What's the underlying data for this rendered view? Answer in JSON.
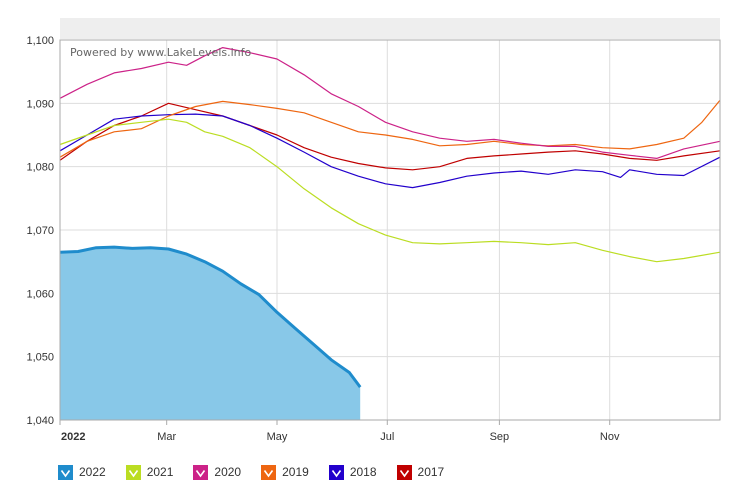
{
  "watermark": "Powered by www.LakeLevels.info",
  "chart_data": {
    "type": "line",
    "title": "",
    "xlabel": "",
    "ylabel": "",
    "ylim": [
      1040,
      1100
    ],
    "xlim": [
      0,
      365
    ],
    "grid": true,
    "legend_placement": "bottom",
    "y_ticks": [
      {
        "value": 1040,
        "label": "1,040"
      },
      {
        "value": 1050,
        "label": "1,050"
      },
      {
        "value": 1060,
        "label": "1,060"
      },
      {
        "value": 1070,
        "label": "1,070"
      },
      {
        "value": 1080,
        "label": "1,080"
      },
      {
        "value": 1090,
        "label": "1,090"
      },
      {
        "value": 1100,
        "label": "1,100"
      }
    ],
    "x_ticks": [
      {
        "day": 0,
        "label": "2022",
        "bold": true
      },
      {
        "day": 59,
        "label": "Mar",
        "bold": false
      },
      {
        "day": 120,
        "label": "May",
        "bold": false
      },
      {
        "day": 181,
        "label": "Jul",
        "bold": false
      },
      {
        "day": 243,
        "label": "Sep",
        "bold": false
      },
      {
        "day": 304,
        "label": "Nov",
        "bold": false
      }
    ],
    "series": [
      {
        "name": "2017",
        "color": "#c00000",
        "style": "line",
        "points": [
          [
            0,
            1081
          ],
          [
            15,
            1084
          ],
          [
            30,
            1086.5
          ],
          [
            45,
            1088
          ],
          [
            60,
            1090
          ],
          [
            75,
            1089
          ],
          [
            90,
            1088
          ],
          [
            105,
            1086.5
          ],
          [
            120,
            1085
          ],
          [
            135,
            1083
          ],
          [
            150,
            1081.5
          ],
          [
            165,
            1080.5
          ],
          [
            180,
            1079.8
          ],
          [
            195,
            1079.5
          ],
          [
            210,
            1080
          ],
          [
            225,
            1081.3
          ],
          [
            240,
            1081.7
          ],
          [
            255,
            1082
          ],
          [
            270,
            1082.3
          ],
          [
            285,
            1082.5
          ],
          [
            300,
            1082
          ],
          [
            315,
            1081.3
          ],
          [
            330,
            1081
          ],
          [
            345,
            1081.7
          ],
          [
            365,
            1082.5
          ]
        ]
      },
      {
        "name": "2018",
        "color": "#2200cc",
        "style": "line",
        "points": [
          [
            0,
            1082.5
          ],
          [
            15,
            1085
          ],
          [
            30,
            1087.5
          ],
          [
            45,
            1088
          ],
          [
            60,
            1088.2
          ],
          [
            75,
            1088.3
          ],
          [
            90,
            1088
          ],
          [
            105,
            1086.5
          ],
          [
            120,
            1084.5
          ],
          [
            135,
            1082.3
          ],
          [
            150,
            1080
          ],
          [
            165,
            1078.5
          ],
          [
            180,
            1077.3
          ],
          [
            195,
            1076.7
          ],
          [
            210,
            1077.5
          ],
          [
            225,
            1078.5
          ],
          [
            240,
            1079
          ],
          [
            255,
            1079.3
          ],
          [
            270,
            1078.8
          ],
          [
            285,
            1079.5
          ],
          [
            300,
            1079.2
          ],
          [
            310,
            1078.3
          ],
          [
            315,
            1079.5
          ],
          [
            330,
            1078.8
          ],
          [
            345,
            1078.6
          ],
          [
            365,
            1081.5
          ]
        ]
      },
      {
        "name": "2019",
        "color": "#ee6611",
        "style": "line",
        "points": [
          [
            0,
            1081.5
          ],
          [
            15,
            1084
          ],
          [
            30,
            1085.5
          ],
          [
            45,
            1086
          ],
          [
            60,
            1088
          ],
          [
            75,
            1089.5
          ],
          [
            90,
            1090.3
          ],
          [
            105,
            1089.8
          ],
          [
            120,
            1089.2
          ],
          [
            135,
            1088.5
          ],
          [
            150,
            1087
          ],
          [
            165,
            1085.5
          ],
          [
            180,
            1085
          ],
          [
            195,
            1084.3
          ],
          [
            210,
            1083.3
          ],
          [
            225,
            1083.5
          ],
          [
            240,
            1084
          ],
          [
            255,
            1083.5
          ],
          [
            270,
            1083.3
          ],
          [
            285,
            1083.5
          ],
          [
            300,
            1083
          ],
          [
            315,
            1082.8
          ],
          [
            330,
            1083.5
          ],
          [
            345,
            1084.5
          ],
          [
            355,
            1087
          ],
          [
            365,
            1090.5
          ]
        ]
      },
      {
        "name": "2020",
        "color": "#cc2288",
        "style": "line",
        "points": [
          [
            0,
            1090.8
          ],
          [
            15,
            1093
          ],
          [
            30,
            1094.8
          ],
          [
            45,
            1095.5
          ],
          [
            60,
            1096.5
          ],
          [
            70,
            1096
          ],
          [
            80,
            1097.5
          ],
          [
            90,
            1098.8
          ],
          [
            105,
            1098
          ],
          [
            120,
            1097
          ],
          [
            135,
            1094.5
          ],
          [
            150,
            1091.5
          ],
          [
            165,
            1089.5
          ],
          [
            180,
            1087
          ],
          [
            195,
            1085.5
          ],
          [
            210,
            1084.5
          ],
          [
            225,
            1084
          ],
          [
            240,
            1084.3
          ],
          [
            255,
            1083.7
          ],
          [
            270,
            1083.2
          ],
          [
            285,
            1083.2
          ],
          [
            300,
            1082.3
          ],
          [
            315,
            1081.8
          ],
          [
            330,
            1081.3
          ],
          [
            345,
            1082.8
          ],
          [
            365,
            1084
          ]
        ]
      },
      {
        "name": "2021",
        "color": "#bbdd22",
        "style": "line",
        "points": [
          [
            0,
            1083.5
          ],
          [
            15,
            1085
          ],
          [
            30,
            1086.5
          ],
          [
            45,
            1087
          ],
          [
            60,
            1087.5
          ],
          [
            70,
            1087
          ],
          [
            80,
            1085.5
          ],
          [
            90,
            1084.8
          ],
          [
            105,
            1083
          ],
          [
            120,
            1080
          ],
          [
            135,
            1076.5
          ],
          [
            150,
            1073.5
          ],
          [
            165,
            1071
          ],
          [
            180,
            1069.2
          ],
          [
            195,
            1068
          ],
          [
            210,
            1067.8
          ],
          [
            225,
            1068
          ],
          [
            240,
            1068.2
          ],
          [
            255,
            1068
          ],
          [
            270,
            1067.7
          ],
          [
            285,
            1068
          ],
          [
            300,
            1066.8
          ],
          [
            315,
            1065.8
          ],
          [
            330,
            1065
          ],
          [
            345,
            1065.5
          ],
          [
            365,
            1066.5
          ]
        ]
      },
      {
        "name": "2022",
        "color": "#1f8ccc",
        "fill": "#88c8e8",
        "style": "area",
        "points": [
          [
            0,
            1066.5
          ],
          [
            10,
            1066.6
          ],
          [
            20,
            1067.2
          ],
          [
            30,
            1067.3
          ],
          [
            40,
            1067.1
          ],
          [
            50,
            1067.2
          ],
          [
            60,
            1067
          ],
          [
            70,
            1066.2
          ],
          [
            80,
            1065
          ],
          [
            90,
            1063.5
          ],
          [
            100,
            1061.5
          ],
          [
            110,
            1059.8
          ],
          [
            120,
            1057
          ],
          [
            130,
            1054.5
          ],
          [
            140,
            1052
          ],
          [
            150,
            1049.5
          ],
          [
            160,
            1047.5
          ],
          [
            166,
            1045.2
          ]
        ]
      }
    ]
  },
  "legend": [
    {
      "label": "2022",
      "color": "#1f8ccc"
    },
    {
      "label": "2021",
      "color": "#bbdd22"
    },
    {
      "label": "2020",
      "color": "#cc2288"
    },
    {
      "label": "2019",
      "color": "#ee6611"
    },
    {
      "label": "2018",
      "color": "#2200cc"
    },
    {
      "label": "2017",
      "color": "#c00000"
    }
  ]
}
